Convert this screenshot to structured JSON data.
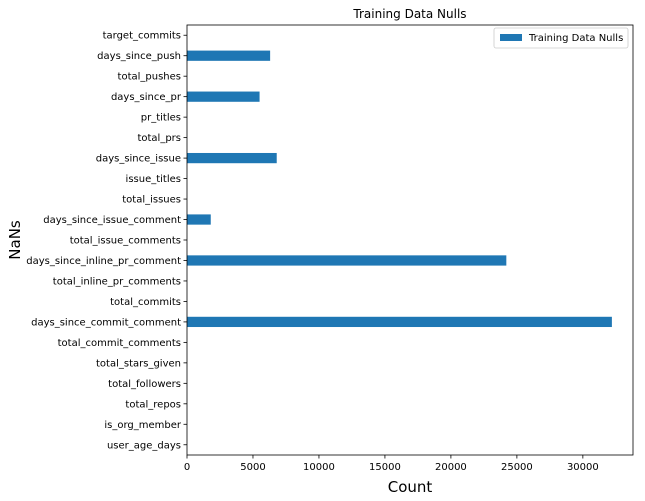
{
  "chart_data": {
    "type": "bar",
    "orientation": "horizontal",
    "title": "Training Data Nulls",
    "xlabel": "Count",
    "ylabel": "NaNs",
    "categories": [
      "user_age_days",
      "is_org_member",
      "total_repos",
      "total_followers",
      "total_stars_given",
      "total_commit_comments",
      "days_since_commit_comment",
      "total_commits",
      "total_inline_pr_comments",
      "days_since_inline_pr_comment",
      "total_issue_comments",
      "days_since_issue_comment",
      "total_issues",
      "issue_titles",
      "days_since_issue",
      "total_prs",
      "pr_titles",
      "days_since_pr",
      "total_pushes",
      "days_since_push",
      "target_commits"
    ],
    "series": [
      {
        "name": "Training Data Nulls",
        "color": "#1f77b4",
        "values": [
          0,
          0,
          0,
          0,
          0,
          0,
          32200,
          0,
          0,
          24200,
          0,
          1800,
          0,
          0,
          6800,
          0,
          0,
          5500,
          0,
          6300,
          0
        ]
      }
    ],
    "xlim": [
      0,
      33800
    ],
    "xticks": [
      0,
      5000,
      10000,
      15000,
      20000,
      25000,
      30000
    ],
    "grid": false,
    "legend_position": "top-right"
  }
}
